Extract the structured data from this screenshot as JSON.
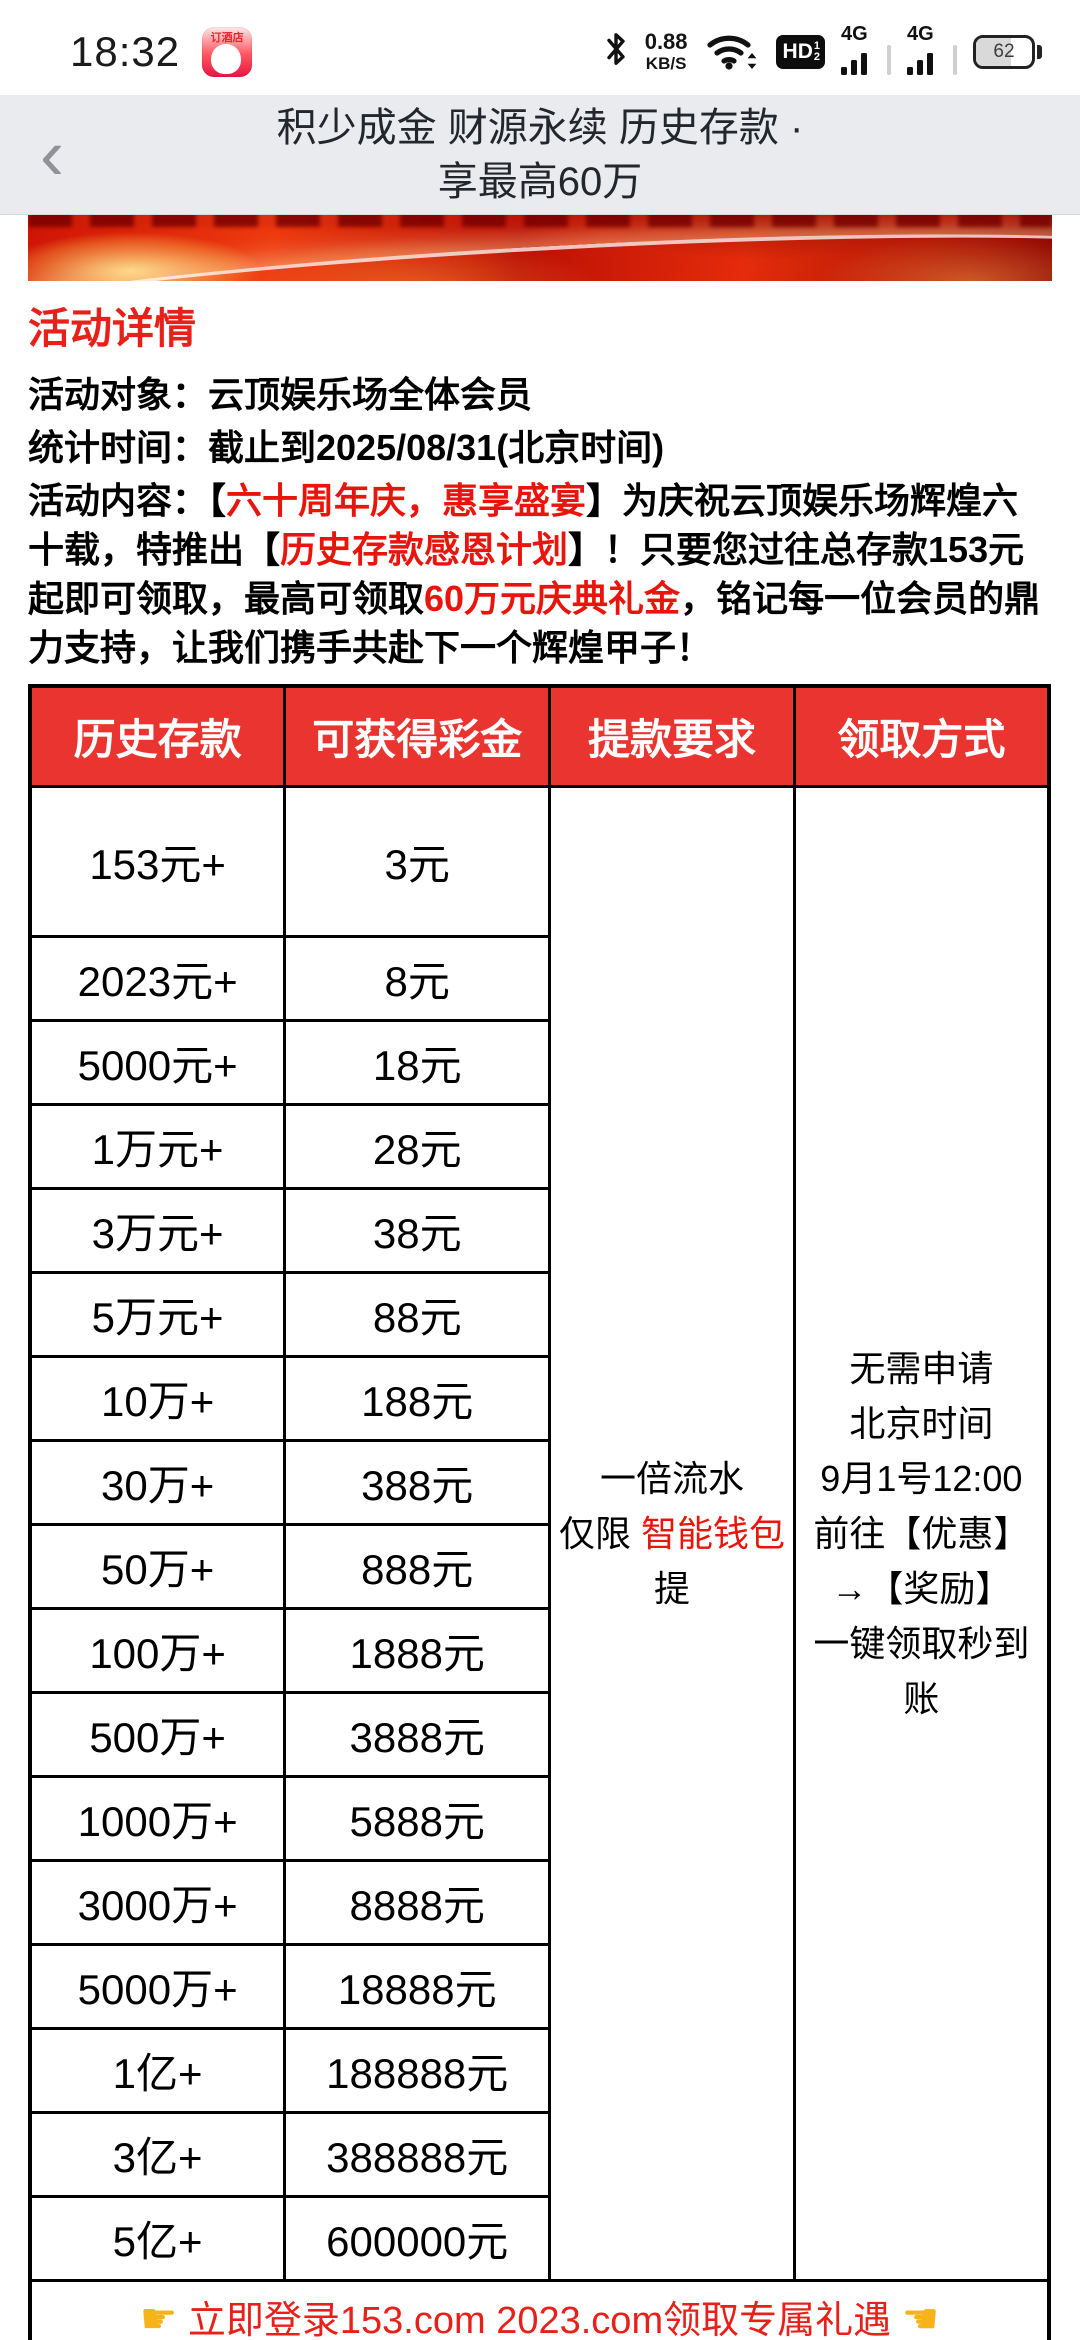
{
  "colors": {
    "table_header_red": "#e93430",
    "text_red": "#e8150c",
    "header_gray": "#e9ebee"
  },
  "status_bar": {
    "time": "18:32",
    "app_icon_label": "订酒店",
    "net_speed_value": "0.88",
    "net_speed_unit": "KB/S",
    "hd_label": "HD",
    "hd_sup": "1",
    "hd_sub": "2",
    "sim1_label": "4G",
    "sim2_label": "4G",
    "battery_percent": "62"
  },
  "header": {
    "back_glyph": "‹",
    "title_line1": "积少成金 财源永续 历史存款 ·",
    "title_line2": "享最高60万"
  },
  "page": {
    "section_title": "活动详情",
    "audience_label": "活动对象：",
    "audience_value": "云顶娱乐场全体会员",
    "stat_time_label": "统计时间：",
    "stat_time_value": "截止到2025/08/31(北京时间)",
    "content_parts": [
      {
        "text": "活动内容：【",
        "red": false
      },
      {
        "text": "六十周年庆，惠享盛宴",
        "red": true
      },
      {
        "text": "】为庆祝云顶娱乐场辉煌六十载，特推出【",
        "red": false
      },
      {
        "text": "历史存款感恩计划",
        "red": true
      },
      {
        "text": "】！只要您过往总存款153元起即可领取，最高可领取",
        "red": false
      },
      {
        "text": "60万元庆典礼金",
        "red": true
      },
      {
        "text": "，铭记每一位会员的鼎力支持，让我们携手共赴下一个辉煌甲子！",
        "red": false
      }
    ]
  },
  "table": {
    "headers": [
      "历史存款",
      "可获得彩金",
      "提款要求",
      "领取方式"
    ],
    "rows": [
      {
        "deposit": "153元+",
        "bonus": "3元"
      },
      {
        "deposit": "2023元+",
        "bonus": "8元"
      },
      {
        "deposit": "5000元+",
        "bonus": "18元"
      },
      {
        "deposit": "1万元+",
        "bonus": "28元"
      },
      {
        "deposit": "3万元+",
        "bonus": "38元"
      },
      {
        "deposit": "5万元+",
        "bonus": "88元"
      },
      {
        "deposit": "10万+",
        "bonus": "188元"
      },
      {
        "deposit": "30万+",
        "bonus": "388元"
      },
      {
        "deposit": "50万+",
        "bonus": "888元"
      },
      {
        "deposit": "100万+",
        "bonus": "1888元"
      },
      {
        "deposit": "500万+",
        "bonus": "3888元"
      },
      {
        "deposit": "1000万+",
        "bonus": "5888元"
      },
      {
        "deposit": "3000万+",
        "bonus": "8888元"
      },
      {
        "deposit": "5000万+",
        "bonus": "18888元"
      },
      {
        "deposit": "1亿+",
        "bonus": "188888元"
      },
      {
        "deposit": "3亿+",
        "bonus": "388888元"
      },
      {
        "deposit": "5亿+",
        "bonus": "600000元"
      }
    ],
    "withdraw_requirement": {
      "line1": "一倍流水",
      "line2_prefix": "仅限 ",
      "line2_red": "智能钱包",
      "line3": "提"
    },
    "claim_method_lines": [
      "无需申请",
      "北京时间",
      "9月1号12:00",
      "前往【优惠】",
      "→【奖励】",
      "一键领取秒到账"
    ],
    "footer": {
      "left_icon": "☛",
      "text": "立即登录153.com 2023.com领取专属礼遇",
      "right_icon": "☚"
    }
  }
}
